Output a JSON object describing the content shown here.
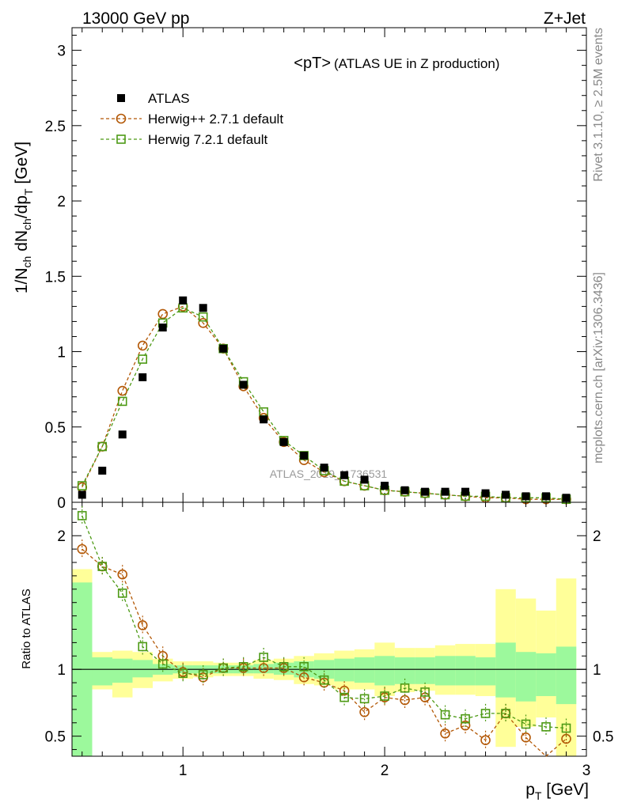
{
  "header": {
    "left": "13000 GeV pp",
    "right": "Z+Jet"
  },
  "side_text": {
    "version": "Rivet 3.1.10, ≥ 2.5M events",
    "source": "mcplots.cern.ch [arXiv:1306.3436]"
  },
  "watermark": "ATLAS_2019_I1736531",
  "main_plot": {
    "title": "<pT>",
    "title_suffix": "(ATLAS UE in Z production)",
    "ylabel": "1/N_ch dN_ch/dp_T [GeV]",
    "ylim": [
      0,
      3.15
    ],
    "yticks": [
      "0",
      "0.5",
      "1",
      "1.5",
      "2",
      "2.5",
      "3"
    ]
  },
  "ratio_plot": {
    "ylabel": "Ratio to ATLAS",
    "ylim": [
      0.35,
      2.25
    ],
    "yticks": [
      "0.5",
      "1",
      "2"
    ]
  },
  "xaxis": {
    "label": "p_T [GeV]",
    "xlim": [
      0.45,
      3.0
    ],
    "xticks": [
      "1",
      "2",
      "3"
    ]
  },
  "legend": {
    "entries": [
      {
        "label": "ATLAS",
        "marker": "square-filled",
        "color": "#000000"
      },
      {
        "label": "Herwig++ 2.7.1 default",
        "marker": "circle-open",
        "color": "#b35806"
      },
      {
        "label": "Herwig 7.2.1 default",
        "marker": "square-open",
        "color": "#4d9a15"
      }
    ]
  },
  "colors": {
    "atlas": "#000000",
    "herwigpp": "#b35806",
    "herwig7": "#4d9a15",
    "band_inner": "#9cf99c",
    "band_outer": "#ffff99"
  },
  "chart_data": {
    "type": "scatter",
    "x": [
      0.5,
      0.6,
      0.7,
      0.8,
      0.9,
      1.0,
      1.1,
      1.2,
      1.3,
      1.4,
      1.5,
      1.6,
      1.7,
      1.8,
      1.9,
      2.0,
      2.1,
      2.2,
      2.3,
      2.4,
      2.5,
      2.6,
      2.7,
      2.8,
      2.9
    ],
    "x_edges": [
      0.45,
      0.55,
      0.65,
      0.75,
      0.85,
      0.95,
      1.05,
      1.15,
      1.25,
      1.35,
      1.45,
      1.55,
      1.65,
      1.75,
      1.85,
      1.95,
      2.05,
      2.15,
      2.25,
      2.35,
      2.45,
      2.55,
      2.65,
      2.75,
      2.85,
      2.95
    ],
    "series": [
      {
        "name": "ATLAS",
        "values": [
          0.05,
          0.21,
          0.45,
          0.83,
          1.16,
          1.34,
          1.29,
          1.02,
          0.78,
          0.55,
          0.4,
          0.31,
          0.23,
          0.18,
          0.15,
          0.11,
          0.08,
          0.07,
          0.07,
          0.07,
          0.06,
          0.05,
          0.04,
          0.04,
          0.03
        ]
      },
      {
        "name": "Herwig++ 2.7.1 default",
        "values": [
          0.1,
          0.37,
          0.74,
          1.04,
          1.25,
          1.3,
          1.19,
          1.02,
          0.77,
          0.56,
          0.4,
          0.28,
          0.2,
          0.14,
          0.11,
          0.08,
          0.07,
          0.06,
          0.05,
          0.04,
          0.03,
          0.03,
          0.02,
          0.02,
          0.02
        ]
      },
      {
        "name": "Herwig 7.2.1 default",
        "values": [
          0.11,
          0.37,
          0.67,
          0.95,
          1.19,
          1.29,
          1.23,
          1.02,
          0.8,
          0.6,
          0.41,
          0.31,
          0.21,
          0.14,
          0.11,
          0.08,
          0.07,
          0.06,
          0.05,
          0.04,
          0.04,
          0.03,
          0.03,
          0.03,
          0.02
        ]
      }
    ],
    "ratio": {
      "herwigpp": [
        1.9,
        1.77,
        1.71,
        1.33,
        1.1,
        0.98,
        0.94,
        1.01,
        1.01,
        1.01,
        1.01,
        0.94,
        0.9,
        0.84,
        0.68,
        0.79,
        0.77,
        0.79,
        0.52,
        0.58,
        0.47,
        0.67,
        0.49,
        0.31,
        0.48
      ],
      "herwig7": [
        2.15,
        1.77,
        1.57,
        1.17,
        1.04,
        0.97,
        0.96,
        1.01,
        1.02,
        1.09,
        1.02,
        1.02,
        0.92,
        0.79,
        0.78,
        0.8,
        0.86,
        0.83,
        0.66,
        0.63,
        0.67,
        0.67,
        0.59,
        0.57,
        0.56
      ],
      "band_inner": [
        [
          0.35,
          1.65
        ],
        [
          0.88,
          1.09
        ],
        [
          0.9,
          1.08
        ],
        [
          0.94,
          1.07
        ],
        [
          0.96,
          1.04
        ],
        [
          0.97,
          1.03
        ],
        [
          0.97,
          1.03
        ],
        [
          0.97,
          1.03
        ],
        [
          0.97,
          1.03
        ],
        [
          0.97,
          1.04
        ],
        [
          0.96,
          1.05
        ],
        [
          0.94,
          1.06
        ],
        [
          0.93,
          1.07
        ],
        [
          0.91,
          1.08
        ],
        [
          0.9,
          1.09
        ],
        [
          0.88,
          1.1
        ],
        [
          0.89,
          1.09
        ],
        [
          0.89,
          1.09
        ],
        [
          0.88,
          1.1
        ],
        [
          0.88,
          1.1
        ],
        [
          0.88,
          1.09
        ],
        [
          0.79,
          1.2
        ],
        [
          0.76,
          1.13
        ],
        [
          0.8,
          1.12
        ],
        [
          0.74,
          1.17
        ]
      ],
      "band_outer": [
        [
          0.35,
          1.75
        ],
        [
          0.85,
          1.13
        ],
        [
          0.79,
          1.14
        ],
        [
          0.86,
          1.13
        ],
        [
          0.91,
          1.08
        ],
        [
          0.93,
          1.06
        ],
        [
          0.94,
          1.06
        ],
        [
          0.95,
          1.05
        ],
        [
          0.95,
          1.05
        ],
        [
          0.93,
          1.07
        ],
        [
          0.92,
          1.08
        ],
        [
          0.89,
          1.1
        ],
        [
          0.88,
          1.12
        ],
        [
          0.85,
          1.14
        ],
        [
          0.85,
          1.15
        ],
        [
          0.8,
          1.2
        ],
        [
          0.83,
          1.16
        ],
        [
          0.84,
          1.16
        ],
        [
          0.81,
          1.18
        ],
        [
          0.81,
          1.19
        ],
        [
          0.8,
          1.19
        ],
        [
          0.42,
          1.6
        ],
        [
          0.57,
          1.53
        ],
        [
          0.64,
          1.44
        ],
        [
          0.35,
          1.68
        ]
      ]
    }
  }
}
